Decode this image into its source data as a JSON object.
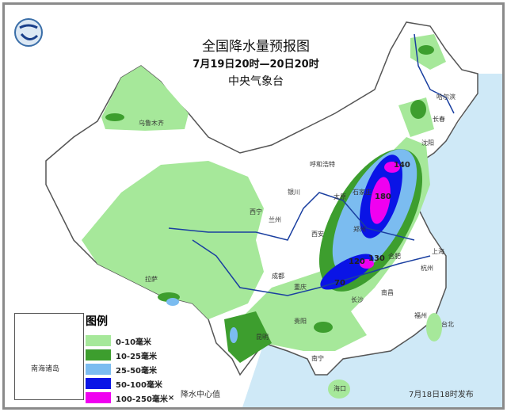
{
  "header": {
    "title": "全国降水量预报图",
    "period": "7月19日20时—20日20时",
    "issuer": "中央气象台"
  },
  "legend": {
    "title": "图例",
    "items": [
      {
        "label": "0-10毫米",
        "color": "#a6e89a"
      },
      {
        "label": "10-25毫米",
        "color": "#3d9e2e"
      },
      {
        "label": "25-50毫米",
        "color": "#7bbcf0"
      },
      {
        "label": "50-100毫米",
        "color": "#0a14e6"
      },
      {
        "label": "100-250毫米",
        "color": "#f000f0"
      }
    ],
    "center_marker": "×",
    "center_note": "降水中心值"
  },
  "inset": {
    "label": "南海诸岛"
  },
  "release": "7月18日18时发布",
  "cities": [
    "乌鲁木齐",
    "哈尔滨",
    "长春",
    "沈阳",
    "呼和浩特",
    "太原",
    "石家庄",
    "郑州",
    "西安",
    "兰州",
    "西宁",
    "银川",
    "成都",
    "重庆",
    "拉萨",
    "贵阳",
    "昆明",
    "南宁",
    "长沙",
    "南昌",
    "杭州",
    "上海",
    "合肥",
    "福州",
    "台北",
    "海口"
  ],
  "precip_centers": [
    "140",
    "180",
    "130",
    "120",
    "70"
  ],
  "colors": {
    "sea": "#cfe9f7",
    "border": "#555555",
    "river": "#1a3fa0"
  }
}
